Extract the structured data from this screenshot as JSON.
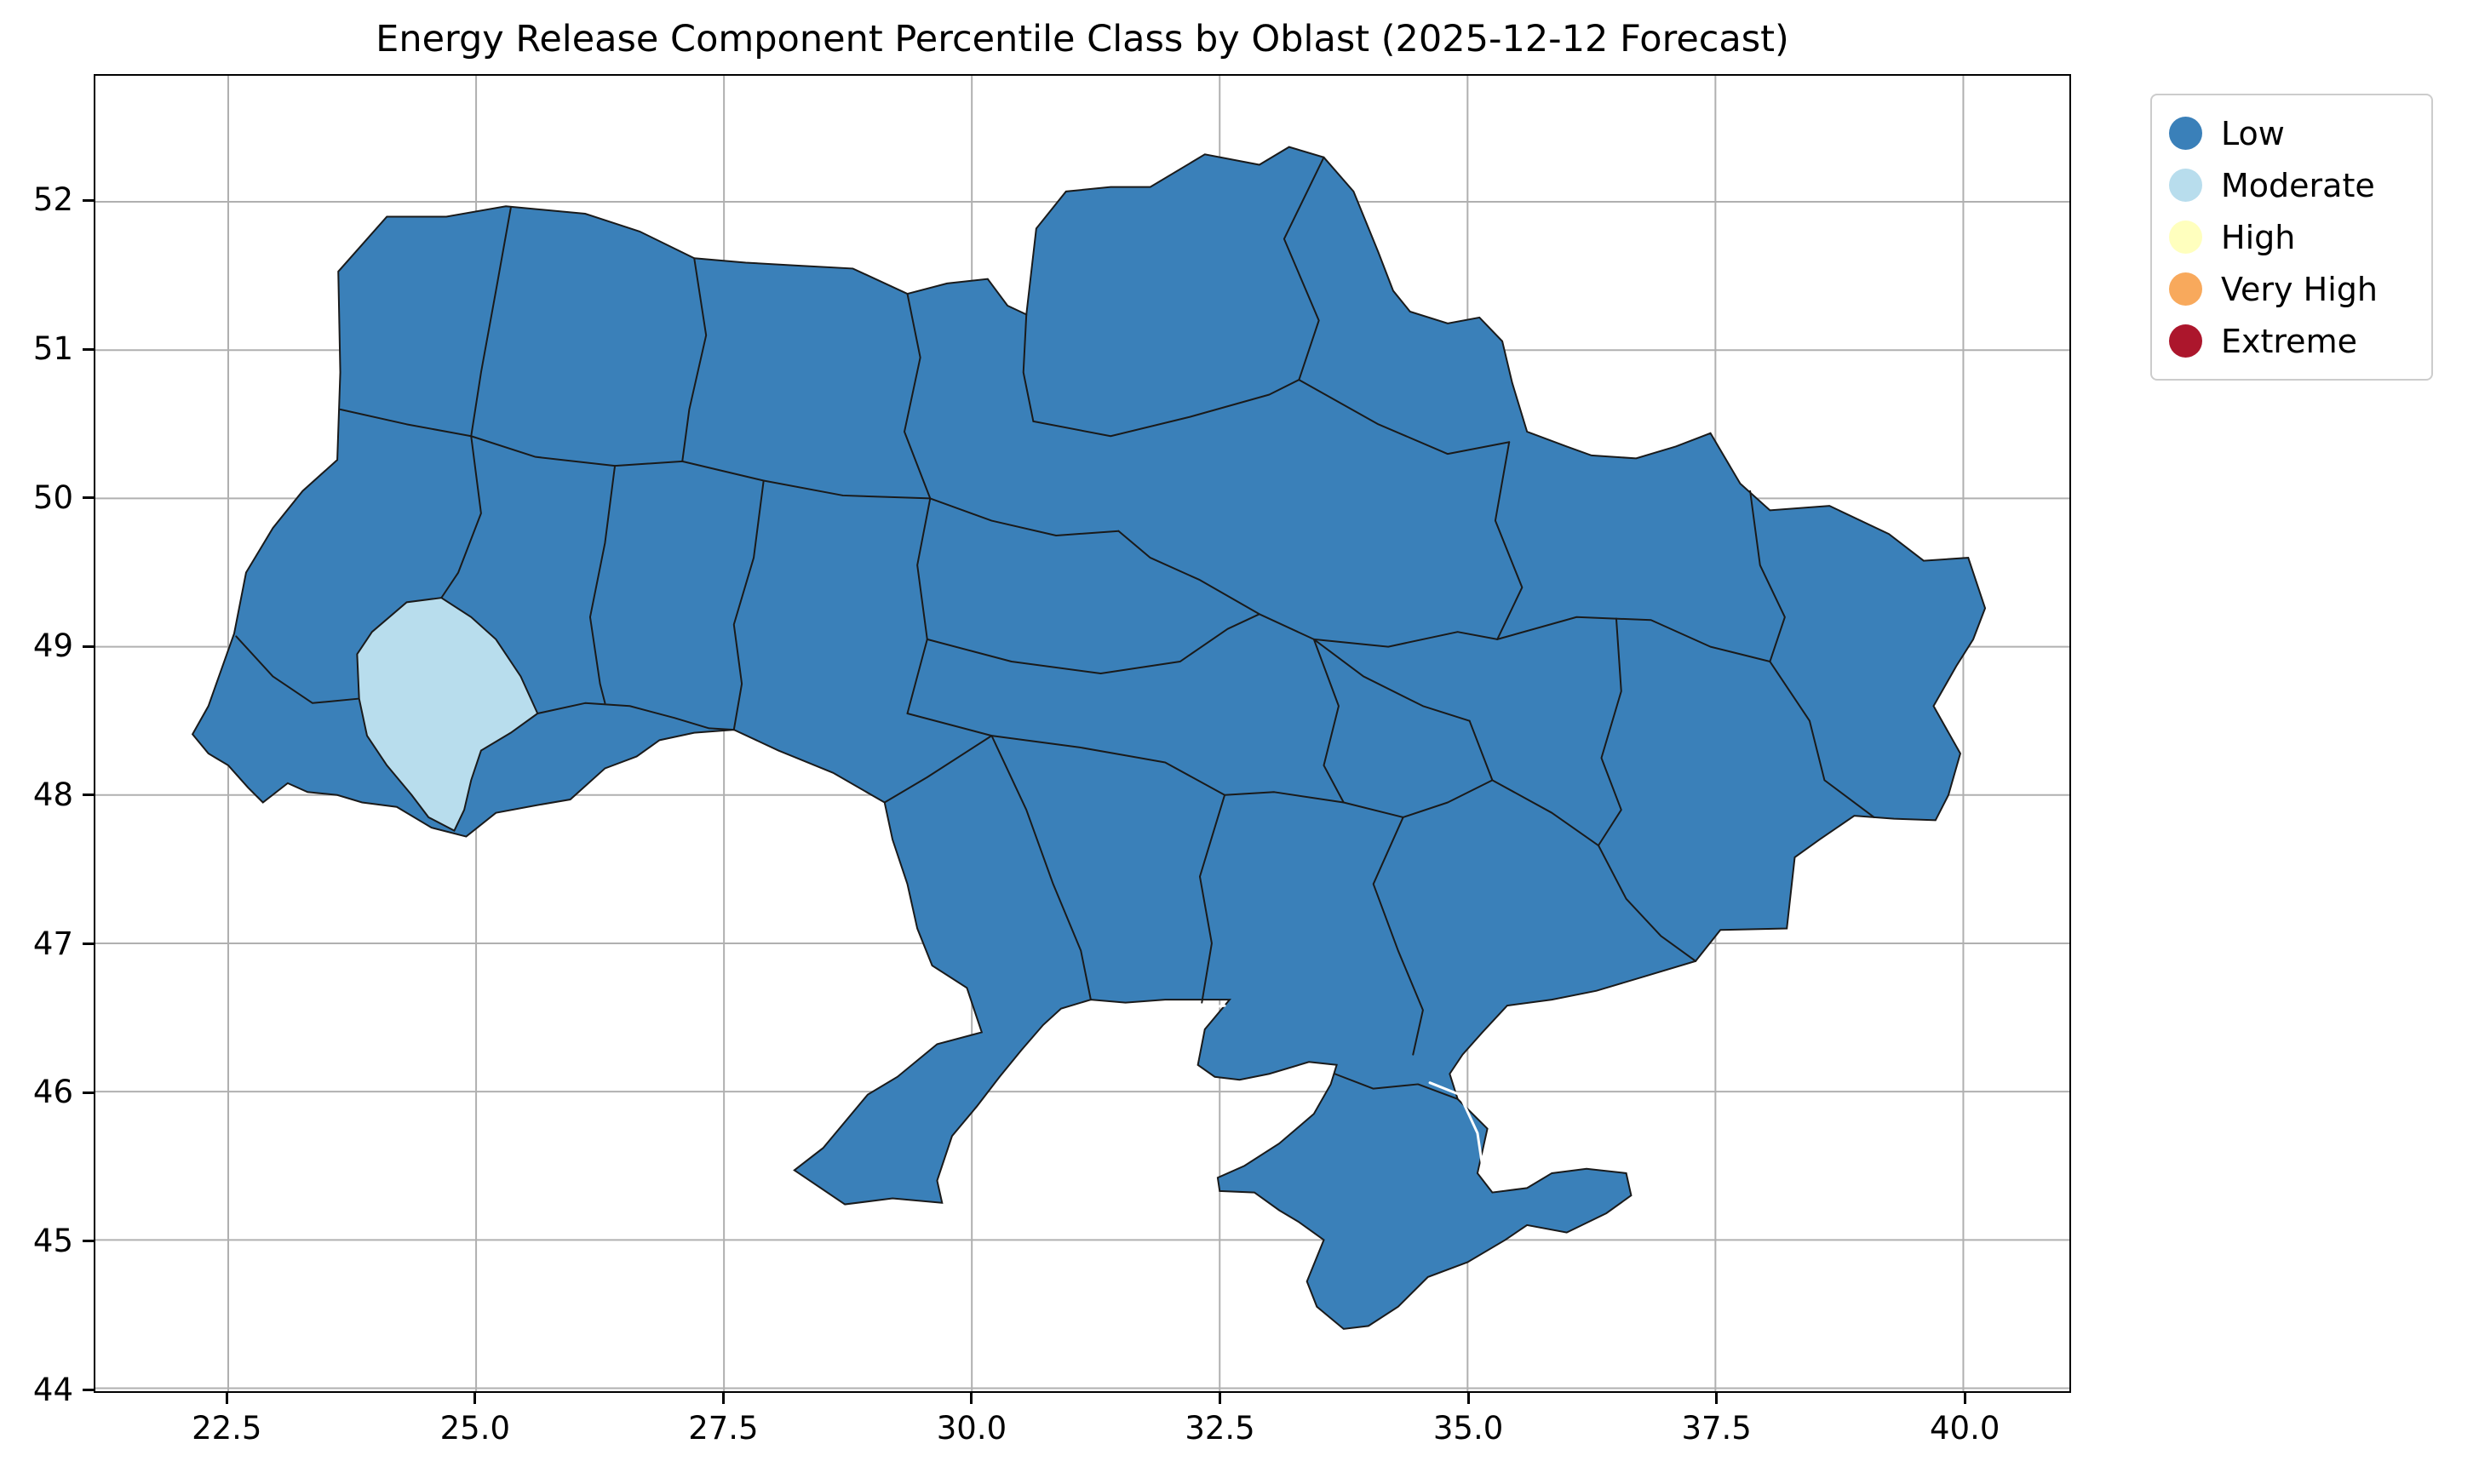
{
  "figure": {
    "title": "Energy Release Component Percentile Class by Oblast (2025-12-12 Forecast)"
  },
  "chart_data": {
    "type": "choropleth",
    "title": "Energy Release Component Percentile Class by Oblast (2025-12-12 Forecast)",
    "forecast_date": "2025-12-12",
    "geography": "Ukraine shown with oblast-level boundaries",
    "x_axis": {
      "range": [
        21.16,
        41.07
      ],
      "ticks": [
        22.5,
        25.0,
        27.5,
        30.0,
        32.5,
        35.0,
        37.5,
        40.0
      ],
      "tick_labels": [
        "22.5",
        "25.0",
        "27.5",
        "30.0",
        "32.5",
        "35.0",
        "37.5",
        "40.0"
      ]
    },
    "y_axis": {
      "range": [
        43.98,
        52.85
      ],
      "ticks": [
        44,
        45,
        46,
        47,
        48,
        49,
        50,
        51,
        52
      ],
      "tick_labels": [
        "44",
        "45",
        "46",
        "47",
        "48",
        "49",
        "50",
        "51",
        "52"
      ]
    },
    "grid": true,
    "grid_below_data": true,
    "legend": {
      "position": "outside upper right",
      "entries": [
        {
          "label": "Low",
          "color": "#3a80b9"
        },
        {
          "label": "Moderate",
          "color": "#b8dded"
        },
        {
          "label": "High",
          "color": "#ffffbe"
        },
        {
          "label": "Very High",
          "color": "#f8a95c"
        },
        {
          "label": "Extreme",
          "color": "#ac162c"
        }
      ]
    },
    "regions": {
      "default_class": "Low",
      "exceptions": [
        {
          "class": "Moderate",
          "approx_extent_lon": [
            23.9,
            25.6
          ],
          "approx_extent_lat": [
            47.8,
            49.3
          ],
          "location": "single oblast in western Ukraine (Carpathian region)"
        }
      ]
    }
  },
  "style": {
    "background": "#ffffff",
    "boundary_color": "#1a1a1a",
    "gridline_color": "#b0b0b0",
    "spine_color": "#000000",
    "text_color": "#000000",
    "legend_border_color": "#cccccc"
  },
  "map_geometry": {
    "outline": [
      [
        22.14,
        48.41
      ],
      [
        22.3,
        48.6
      ],
      [
        22.56,
        49.09
      ],
      [
        22.68,
        49.5
      ],
      [
        22.95,
        49.8
      ],
      [
        23.25,
        50.05
      ],
      [
        23.6,
        50.26
      ],
      [
        23.63,
        50.85
      ],
      [
        23.61,
        51.53
      ],
      [
        24.1,
        51.9
      ],
      [
        24.7,
        51.9
      ],
      [
        25.3,
        51.97
      ],
      [
        26.1,
        51.92
      ],
      [
        26.65,
        51.8
      ],
      [
        27.2,
        51.62
      ],
      [
        27.72,
        51.59
      ],
      [
        28.25,
        51.57
      ],
      [
        28.8,
        51.55
      ],
      [
        29.35,
        51.38
      ],
      [
        29.75,
        51.45
      ],
      [
        30.16,
        51.48
      ],
      [
        30.36,
        51.3
      ],
      [
        30.55,
        51.24
      ],
      [
        30.65,
        51.82
      ],
      [
        30.95,
        52.07
      ],
      [
        31.4,
        52.1
      ],
      [
        31.8,
        52.1
      ],
      [
        32.35,
        52.32
      ],
      [
        32.9,
        52.25
      ],
      [
        33.2,
        52.37
      ],
      [
        33.55,
        52.3
      ],
      [
        33.85,
        52.07
      ],
      [
        34.1,
        51.66
      ],
      [
        34.25,
        51.4
      ],
      [
        34.42,
        51.26
      ],
      [
        34.8,
        51.18
      ],
      [
        35.12,
        51.22
      ],
      [
        35.35,
        51.06
      ],
      [
        35.45,
        50.78
      ],
      [
        35.6,
        50.45
      ],
      [
        36.0,
        50.35
      ],
      [
        36.25,
        50.29
      ],
      [
        36.7,
        50.27
      ],
      [
        37.1,
        50.35
      ],
      [
        37.45,
        50.44
      ],
      [
        37.75,
        50.1
      ],
      [
        38.05,
        49.92
      ],
      [
        38.65,
        49.95
      ],
      [
        39.25,
        49.76
      ],
      [
        39.6,
        49.58
      ],
      [
        40.05,
        49.6
      ],
      [
        40.22,
        49.26
      ],
      [
        40.1,
        49.05
      ],
      [
        39.93,
        48.87
      ],
      [
        39.7,
        48.6
      ],
      [
        39.97,
        48.28
      ],
      [
        39.85,
        48.0
      ],
      [
        39.72,
        47.83
      ],
      [
        39.3,
        47.84
      ],
      [
        38.9,
        47.86
      ],
      [
        38.55,
        47.7
      ],
      [
        38.3,
        47.58
      ],
      [
        38.22,
        47.1
      ],
      [
        37.55,
        47.09
      ],
      [
        37.3,
        46.88
      ],
      [
        36.8,
        46.78
      ],
      [
        36.3,
        46.68
      ],
      [
        35.85,
        46.62
      ],
      [
        35.4,
        46.58
      ],
      [
        35.15,
        46.4
      ],
      [
        34.95,
        46.25
      ],
      [
        34.82,
        46.12
      ],
      [
        34.9,
        45.95
      ],
      [
        35.2,
        45.75
      ],
      [
        35.1,
        45.45
      ],
      [
        35.25,
        45.32
      ],
      [
        35.6,
        45.35
      ],
      [
        35.85,
        45.45
      ],
      [
        36.2,
        45.48
      ],
      [
        36.6,
        45.45
      ],
      [
        36.65,
        45.3
      ],
      [
        36.4,
        45.18
      ],
      [
        36.0,
        45.05
      ],
      [
        35.6,
        45.1
      ],
      [
        35.38,
        45.0
      ],
      [
        35.0,
        44.85
      ],
      [
        34.6,
        44.75
      ],
      [
        34.3,
        44.55
      ],
      [
        34.0,
        44.42
      ],
      [
        33.75,
        44.4
      ],
      [
        33.48,
        44.55
      ],
      [
        33.38,
        44.72
      ],
      [
        33.55,
        45.0
      ],
      [
        33.3,
        45.12
      ],
      [
        33.1,
        45.2
      ],
      [
        32.85,
        45.32
      ],
      [
        32.5,
        45.33
      ],
      [
        32.48,
        45.42
      ],
      [
        32.75,
        45.5
      ],
      [
        33.1,
        45.65
      ],
      [
        33.45,
        45.85
      ],
      [
        33.62,
        46.05
      ],
      [
        33.68,
        46.18
      ],
      [
        33.4,
        46.2
      ],
      [
        33.0,
        46.12
      ],
      [
        32.7,
        46.08
      ],
      [
        32.45,
        46.1
      ],
      [
        32.28,
        46.18
      ],
      [
        32.35,
        46.42
      ],
      [
        32.6,
        46.62
      ],
      [
        31.95,
        46.62
      ],
      [
        31.55,
        46.6
      ],
      [
        31.2,
        46.62
      ],
      [
        30.9,
        46.56
      ],
      [
        30.72,
        46.45
      ],
      [
        30.5,
        46.28
      ],
      [
        30.28,
        46.1
      ],
      [
        30.05,
        45.9
      ],
      [
        29.8,
        45.7
      ],
      [
        29.65,
        45.4
      ],
      [
        29.7,
        45.25
      ],
      [
        29.2,
        45.28
      ],
      [
        28.72,
        45.24
      ],
      [
        28.21,
        45.47
      ],
      [
        28.5,
        45.62
      ],
      [
        28.95,
        45.98
      ],
      [
        29.25,
        46.1
      ],
      [
        29.65,
        46.32
      ],
      [
        30.1,
        46.4
      ],
      [
        29.95,
        46.7
      ],
      [
        29.6,
        46.85
      ],
      [
        29.45,
        47.1
      ],
      [
        29.35,
        47.4
      ],
      [
        29.2,
        47.7
      ],
      [
        29.12,
        47.95
      ],
      [
        28.6,
        48.15
      ],
      [
        28.05,
        48.3
      ],
      [
        27.6,
        48.44
      ],
      [
        27.2,
        48.42
      ],
      [
        26.85,
        48.37
      ],
      [
        26.62,
        48.26
      ],
      [
        26.3,
        48.18
      ],
      [
        25.95,
        47.97
      ],
      [
        25.6,
        47.93
      ],
      [
        25.2,
        47.88
      ],
      [
        24.9,
        47.72
      ],
      [
        24.55,
        47.78
      ],
      [
        24.2,
        47.92
      ],
      [
        23.85,
        47.95
      ],
      [
        23.6,
        48.0
      ],
      [
        23.3,
        48.02
      ],
      [
        23.1,
        48.08
      ],
      [
        22.85,
        47.95
      ],
      [
        22.7,
        48.05
      ],
      [
        22.5,
        48.2
      ],
      [
        22.3,
        48.28
      ]
    ],
    "moderate_region": [
      [
        23.8,
        48.95
      ],
      [
        23.95,
        49.1
      ],
      [
        24.3,
        49.3
      ],
      [
        24.65,
        49.33
      ],
      [
        24.95,
        49.2
      ],
      [
        25.2,
        49.05
      ],
      [
        25.45,
        48.8
      ],
      [
        25.62,
        48.55
      ],
      [
        25.35,
        48.42
      ],
      [
        25.05,
        48.3
      ],
      [
        24.95,
        48.1
      ],
      [
        24.88,
        47.9
      ],
      [
        24.78,
        47.76
      ],
      [
        24.52,
        47.85
      ],
      [
        24.35,
        48.0
      ],
      [
        24.1,
        48.2
      ],
      [
        23.9,
        48.4
      ],
      [
        23.82,
        48.65
      ]
    ],
    "internal_borders": [
      [
        [
          25.35,
          51.96
        ],
        [
          25.2,
          51.4
        ],
        [
          25.05,
          50.85
        ],
        [
          24.95,
          50.42
        ]
      ],
      [
        [
          27.2,
          51.62
        ],
        [
          27.32,
          51.1
        ],
        [
          27.15,
          50.6
        ],
        [
          27.08,
          50.25
        ]
      ],
      [
        [
          29.35,
          51.38
        ],
        [
          29.48,
          50.95
        ],
        [
          29.32,
          50.45
        ],
        [
          29.58,
          50.0
        ]
      ],
      [
        [
          30.55,
          51.24
        ],
        [
          30.52,
          50.85
        ],
        [
          30.62,
          50.52
        ]
      ],
      [
        [
          33.55,
          52.3
        ],
        [
          33.15,
          51.75
        ],
        [
          33.5,
          51.2
        ],
        [
          33.3,
          50.8
        ]
      ],
      [
        [
          23.63,
          50.6
        ],
        [
          24.3,
          50.5
        ],
        [
          24.95,
          50.42
        ],
        [
          25.6,
          50.28
        ],
        [
          26.4,
          50.22
        ],
        [
          27.08,
          50.25
        ],
        [
          27.9,
          50.12
        ],
        [
          28.7,
          50.02
        ],
        [
          29.58,
          50.0
        ],
        [
          30.2,
          49.85
        ],
        [
          30.85,
          49.75
        ],
        [
          31.48,
          49.78
        ]
      ],
      [
        [
          24.95,
          50.42
        ],
        [
          25.05,
          49.9
        ],
        [
          24.82,
          49.5
        ],
        [
          24.65,
          49.33
        ]
      ],
      [
        [
          26.4,
          50.22
        ],
        [
          26.3,
          49.7
        ],
        [
          26.15,
          49.2
        ],
        [
          26.25,
          48.75
        ],
        [
          26.3,
          48.62
        ]
      ],
      [
        [
          27.9,
          50.12
        ],
        [
          27.8,
          49.6
        ],
        [
          27.6,
          49.15
        ],
        [
          27.68,
          48.75
        ],
        [
          27.6,
          48.44
        ]
      ],
      [
        [
          29.58,
          50.0
        ],
        [
          29.45,
          49.55
        ],
        [
          29.55,
          49.05
        ],
        [
          29.35,
          48.55
        ]
      ],
      [
        [
          29.55,
          49.05
        ],
        [
          30.4,
          48.9
        ],
        [
          31.3,
          48.82
        ],
        [
          32.1,
          48.9
        ],
        [
          32.58,
          49.12
        ],
        [
          32.9,
          49.22
        ]
      ],
      [
        [
          31.48,
          49.78
        ],
        [
          31.8,
          49.6
        ],
        [
          32.3,
          49.45
        ],
        [
          32.9,
          49.22
        ],
        [
          33.45,
          49.05
        ],
        [
          33.95,
          48.8
        ],
        [
          34.55,
          48.6
        ],
        [
          35.02,
          48.5
        ]
      ],
      [
        [
          30.62,
          50.52
        ],
        [
          31.4,
          50.42
        ],
        [
          32.2,
          50.55
        ],
        [
          33.0,
          50.7
        ],
        [
          33.3,
          50.8
        ]
      ],
      [
        [
          33.3,
          50.8
        ],
        [
          34.1,
          50.5
        ],
        [
          34.8,
          50.3
        ],
        [
          35.42,
          50.38
        ]
      ],
      [
        [
          35.42,
          50.38
        ],
        [
          35.28,
          49.85
        ],
        [
          35.55,
          49.4
        ],
        [
          35.3,
          49.05
        ]
      ],
      [
        [
          33.45,
          49.05
        ],
        [
          34.2,
          49.0
        ],
        [
          34.9,
          49.1
        ],
        [
          35.3,
          49.05
        ]
      ],
      [
        [
          35.3,
          49.05
        ],
        [
          36.1,
          49.2
        ],
        [
          36.85,
          49.18
        ],
        [
          37.45,
          49.0
        ],
        [
          38.05,
          48.9
        ]
      ],
      [
        [
          37.85,
          50.05
        ],
        [
          37.95,
          49.55
        ],
        [
          38.2,
          49.2
        ],
        [
          38.05,
          48.9
        ]
      ],
      [
        [
          38.05,
          48.9
        ],
        [
          38.45,
          48.5
        ],
        [
          38.6,
          48.1
        ],
        [
          39.1,
          47.85
        ]
      ],
      [
        [
          36.5,
          49.19
        ],
        [
          36.55,
          48.7
        ],
        [
          36.35,
          48.25
        ],
        [
          36.55,
          47.9
        ],
        [
          36.32,
          47.66
        ]
      ],
      [
        [
          35.02,
          48.5
        ],
        [
          35.25,
          48.1
        ],
        [
          35.85,
          47.88
        ],
        [
          36.32,
          47.66
        ]
      ],
      [
        [
          33.45,
          49.05
        ],
        [
          33.7,
          48.6
        ],
        [
          33.55,
          48.2
        ],
        [
          33.75,
          47.95
        ]
      ],
      [
        [
          29.35,
          48.55
        ],
        [
          30.2,
          48.4
        ],
        [
          31.1,
          48.32
        ],
        [
          31.95,
          48.22
        ],
        [
          32.55,
          48.0
        ],
        [
          33.05,
          48.02
        ],
        [
          33.75,
          47.95
        ]
      ],
      [
        [
          33.75,
          47.95
        ],
        [
          34.35,
          47.85
        ]
      ],
      [
        [
          35.25,
          48.1
        ],
        [
          34.8,
          47.95
        ],
        [
          34.35,
          47.85
        ]
      ],
      [
        [
          34.35,
          47.85
        ],
        [
          34.05,
          47.4
        ],
        [
          34.3,
          46.95
        ],
        [
          34.55,
          46.55
        ],
        [
          34.45,
          46.25
        ]
      ],
      [
        [
          30.2,
          48.4
        ],
        [
          30.55,
          47.9
        ],
        [
          30.82,
          47.4
        ],
        [
          31.1,
          46.95
        ],
        [
          31.2,
          46.62
        ]
      ],
      [
        [
          32.55,
          48.0
        ],
        [
          32.3,
          47.45
        ],
        [
          32.42,
          47.0
        ],
        [
          32.32,
          46.6
        ]
      ],
      [
        [
          29.12,
          47.95
        ],
        [
          29.55,
          48.12
        ],
        [
          30.2,
          48.4
        ]
      ],
      [
        [
          25.62,
          48.55
        ],
        [
          26.1,
          48.62
        ],
        [
          26.55,
          48.6
        ],
        [
          27.0,
          48.52
        ],
        [
          27.35,
          48.45
        ],
        [
          27.6,
          48.44
        ]
      ],
      [
        [
          22.58,
          49.07
        ],
        [
          22.95,
          48.8
        ],
        [
          23.35,
          48.62
        ],
        [
          23.82,
          48.65
        ]
      ],
      [
        [
          33.66,
          46.12
        ],
        [
          34.05,
          46.02
        ],
        [
          34.5,
          46.05
        ],
        [
          34.9,
          45.95
        ]
      ],
      [
        [
          36.32,
          47.66
        ],
        [
          36.6,
          47.3
        ],
        [
          36.95,
          47.05
        ],
        [
          37.3,
          46.88
        ]
      ]
    ],
    "water_lines": [
      [
        [
          32.55,
          46.58
        ],
        [
          32.05,
          46.54
        ],
        [
          31.6,
          46.58
        ]
      ],
      [
        [
          34.62,
          46.06
        ],
        [
          34.92,
          45.98
        ],
        [
          35.1,
          45.72
        ],
        [
          35.16,
          45.45
        ]
      ]
    ]
  }
}
